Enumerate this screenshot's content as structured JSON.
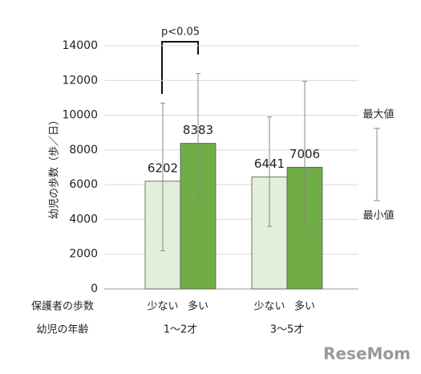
{
  "chart_data": {
    "type": "bar",
    "y_label": "幼児の歩数（歩／日）",
    "x_series_label": "保護者の歩数",
    "x_group_label": "幼児の年齢",
    "categories": [
      "1～2才",
      "3～5才"
    ],
    "series": [
      {
        "name": "少ない",
        "color": "#e2efda",
        "values": [
          6202,
          6441
        ],
        "min": [
          2200,
          3600
        ],
        "max": [
          10700,
          9900
        ]
      },
      {
        "name": "多い",
        "color": "#70ad47",
        "values": [
          8383,
          7006
        ],
        "min": [
          5150,
          3550
        ],
        "max": [
          12400,
          11950
        ]
      }
    ],
    "ylim": [
      0,
      14000
    ],
    "yticks": [
      0,
      2000,
      4000,
      6000,
      8000,
      10000,
      12000,
      14000
    ],
    "grid": true,
    "significance": "p<0.05",
    "max_label": "最大値",
    "min_label": "最小値",
    "watermark": "ReseMom"
  }
}
